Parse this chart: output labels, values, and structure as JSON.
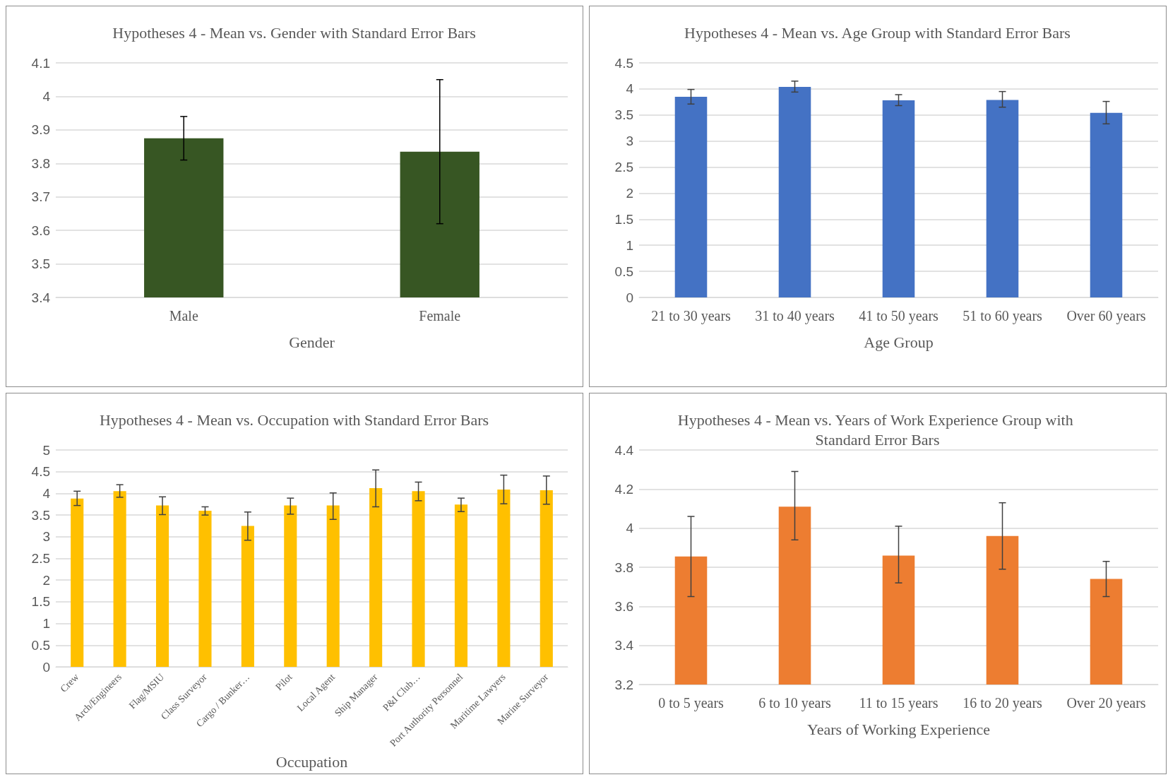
{
  "chart_data": [
    {
      "type": "bar",
      "title": "Hypotheses 4 - Mean vs. Gender with Standard Error Bars",
      "xlabel": "Gender",
      "categories": [
        "Male",
        "Female"
      ],
      "values": [
        3.875,
        3.835
      ],
      "errors": [
        [
          3.81,
          3.94
        ],
        [
          3.62,
          4.05
        ]
      ],
      "color": "#375623",
      "ylim": [
        3.4,
        4.1
      ],
      "yticks": [
        3.4,
        3.5,
        3.6,
        3.7,
        3.8,
        3.9,
        4,
        4.1
      ],
      "grid": "y"
    },
    {
      "type": "bar",
      "title": "Hypotheses 4 - Mean vs. Age Group with Standard Error Bars",
      "xlabel": "Age Group",
      "categories": [
        "21 to 30 years",
        "31 to 40 years",
        "41 to 50 years",
        "51 to 60 years",
        "Over 60 years"
      ],
      "values": [
        3.85,
        4.04,
        3.78,
        3.79,
        3.54
      ],
      "errors": [
        [
          3.71,
          3.99
        ],
        [
          3.94,
          4.15
        ],
        [
          3.68,
          3.89
        ],
        [
          3.65,
          3.95
        ],
        [
          3.33,
          3.76
        ]
      ],
      "color": "#4472c4",
      "ylim": [
        0,
        4.5
      ],
      "yticks": [
        0,
        0.5,
        1,
        1.5,
        2,
        2.5,
        3,
        3.5,
        4,
        4.5
      ],
      "grid": "y"
    },
    {
      "type": "bar",
      "title": "Hypotheses 4 - Mean vs. Occupation with Standard Error Bars",
      "xlabel": "Occupation",
      "categories": [
        "Crew",
        "Arch/Engineers",
        "Flag/MSIU",
        "Class Surveyor",
        "Cargo / Bunker…",
        "Pilot",
        "Local Agent",
        "Ship Manager",
        "P&I Club…",
        "Port Authority Personnel",
        "Maritime Lawyers",
        "Marine Surveyor"
      ],
      "values": [
        3.88,
        4.05,
        3.72,
        3.6,
        3.25,
        3.72,
        3.72,
        4.12,
        4.05,
        3.74,
        4.09,
        4.07
      ],
      "errors": [
        [
          3.72,
          4.05
        ],
        [
          3.91,
          4.2
        ],
        [
          3.51,
          3.92
        ],
        [
          3.5,
          3.69
        ],
        [
          2.92,
          3.57
        ],
        [
          3.52,
          3.89
        ],
        [
          3.4,
          4.01
        ],
        [
          3.69,
          4.54
        ],
        [
          3.83,
          4.26
        ],
        [
          3.58,
          3.89
        ],
        [
          3.76,
          4.42
        ],
        [
          3.75,
          4.4
        ]
      ],
      "color": "#ffc000",
      "ylim": [
        0,
        5
      ],
      "yticks": [
        0,
        0.5,
        1,
        1.5,
        2,
        2.5,
        3,
        3.5,
        4,
        4.5,
        5
      ],
      "grid": "y"
    },
    {
      "type": "bar",
      "title": "Hypotheses 4 - Mean vs. Years of Work Experience Group with Standard Error Bars",
      "xlabel": "Years of Working Experience",
      "categories": [
        "0 to 5 years",
        "6 to 10 years",
        "11 to 15 years",
        "16 to 20 years",
        "Over 20 years"
      ],
      "values": [
        3.855,
        4.11,
        3.86,
        3.96,
        3.74
      ],
      "errors": [
        [
          3.65,
          4.06
        ],
        [
          3.94,
          4.29
        ],
        [
          3.72,
          4.01
        ],
        [
          3.79,
          4.13
        ],
        [
          3.65,
          3.83
        ]
      ],
      "color": "#ed7d31",
      "ylim": [
        3.2,
        4.4
      ],
      "yticks": [
        3.2,
        3.4,
        3.6,
        3.8,
        4,
        4.2,
        4.4
      ],
      "grid": "y"
    }
  ]
}
